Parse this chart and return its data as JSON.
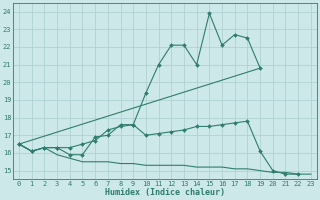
{
  "xlabel": "Humidex (Indice chaleur)",
  "x_all": [
    0,
    1,
    2,
    3,
    4,
    5,
    6,
    7,
    8,
    9,
    10,
    11,
    12,
    13,
    14,
    15,
    16,
    17,
    18,
    19,
    20,
    21,
    22,
    23
  ],
  "line1_x": [
    0,
    1,
    2,
    3,
    4,
    5,
    6,
    7,
    8,
    9,
    10,
    11,
    12,
    13,
    14,
    15,
    16,
    17,
    18,
    19
  ],
  "line1_y": [
    16.5,
    16.1,
    16.3,
    16.3,
    15.9,
    15.9,
    16.9,
    17.0,
    17.6,
    17.6,
    19.4,
    21.0,
    22.1,
    22.1,
    21.0,
    23.9,
    22.1,
    22.7,
    22.5,
    20.8
  ],
  "line2_x": [
    0,
    19
  ],
  "line2_y": [
    16.5,
    20.8
  ],
  "line3_x": [
    0,
    1,
    2,
    3,
    4,
    5,
    6,
    7,
    8,
    9,
    10,
    11,
    12,
    13,
    14,
    15,
    16,
    17,
    18,
    19,
    20,
    21,
    22
  ],
  "line3_y": [
    16.5,
    16.1,
    16.3,
    16.3,
    16.3,
    16.5,
    16.7,
    17.3,
    17.5,
    17.6,
    17.0,
    17.1,
    17.2,
    17.3,
    17.5,
    17.5,
    17.6,
    17.7,
    17.8,
    16.1,
    15.0,
    14.8,
    14.8
  ],
  "line4_x": [
    0,
    1,
    2,
    3,
    4,
    5,
    6,
    7,
    8,
    9,
    10,
    11,
    12,
    13,
    14,
    15,
    16,
    17,
    18,
    19,
    20,
    21,
    22,
    23
  ],
  "line4_y": [
    16.5,
    16.1,
    16.3,
    15.9,
    15.7,
    15.5,
    15.5,
    15.5,
    15.4,
    15.4,
    15.3,
    15.3,
    15.3,
    15.3,
    15.2,
    15.2,
    15.2,
    15.1,
    15.1,
    15.0,
    14.9,
    14.9,
    14.8,
    14.8
  ],
  "ylim": [
    14.5,
    24.5
  ],
  "xlim": [
    -0.5,
    23.5
  ],
  "yticks": [
    15,
    16,
    17,
    18,
    19,
    20,
    21,
    22,
    23,
    24
  ],
  "xticks": [
    0,
    1,
    2,
    3,
    4,
    5,
    6,
    7,
    8,
    9,
    10,
    11,
    12,
    13,
    14,
    15,
    16,
    17,
    18,
    19,
    20,
    21,
    22,
    23
  ],
  "line_color": "#2e7d6e",
  "bg_color": "#cde8e8",
  "grid_color": "#aacece",
  "spine_color": "#2e7d6e"
}
